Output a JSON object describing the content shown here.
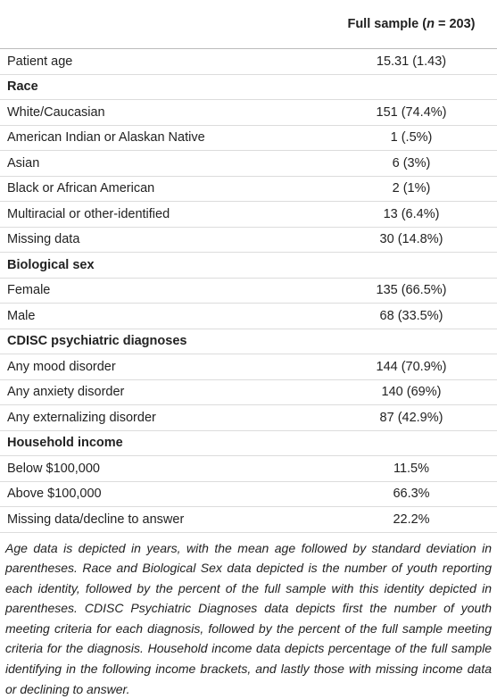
{
  "table": {
    "header": {
      "before": "Full sample (",
      "italic": "n",
      "after": " = 203)"
    },
    "rows": [
      [
        "Patient age",
        "15.31 (1.43)"
      ],
      [
        "Race"
      ],
      [
        "White/Caucasian",
        "151 (74.4%)"
      ],
      [
        "American Indian or Alaskan Native",
        "1 (.5%)"
      ],
      [
        "Asian",
        "6 (3%)"
      ],
      [
        "Black or African American",
        "2 (1%)"
      ],
      [
        "Multiracial or other-identified",
        "13 (6.4%)"
      ],
      [
        "Missing data",
        "30 (14.8%)"
      ],
      [
        "Biological sex"
      ],
      [
        "Female",
        "135 (66.5%)"
      ],
      [
        "Male",
        "68 (33.5%)"
      ],
      [
        "CDISC psychiatric diagnoses"
      ],
      [
        "Any mood disorder",
        "144 (70.9%)"
      ],
      [
        "Any anxiety disorder",
        "140 (69%)"
      ],
      [
        "Any externalizing disorder",
        "87 (42.9%)"
      ],
      [
        "Household income"
      ],
      [
        "Below $100,000",
        "11.5%"
      ],
      [
        "Above $100,000",
        "66.3%"
      ],
      [
        "Missing data/decline to answer",
        "22.2%"
      ]
    ],
    "footnote": "Age data is depicted in years, with the mean age followed by standard deviation in parentheses. Race and Biological Sex data depicted is the number of youth reporting each identity, followed by the percent of the full sample with this identity depicted in parentheses. CDISC Psychiatric Diagnoses data depicts first the number of youth meeting criteria for each diagnosis, followed by the percent of the full sample meeting criteria for the diagnosis. Household income data depicts percentage of the full sample identifying in the following income brackets, and lastly those with missing income data or declining to answer."
  }
}
